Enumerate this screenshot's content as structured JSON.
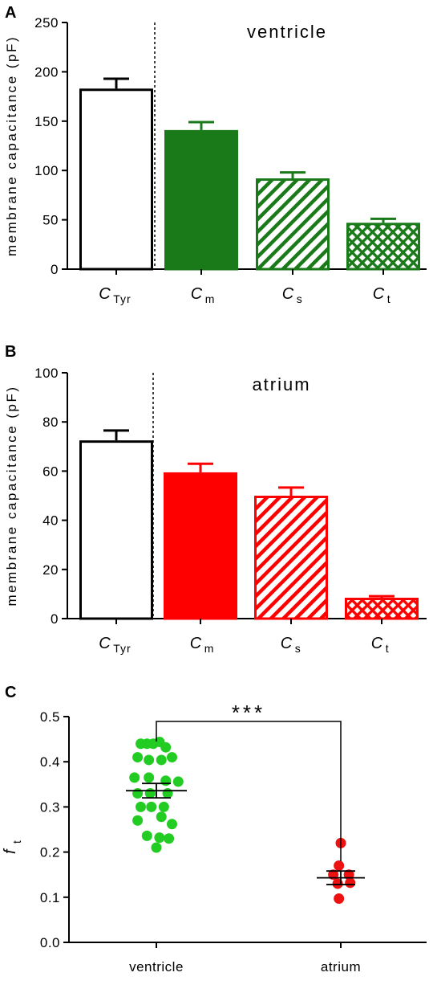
{
  "panels": {
    "A": {
      "letter": "A"
    },
    "B": {
      "letter": "B"
    },
    "C": {
      "letter": "C"
    }
  },
  "chart_data": [
    {
      "type": "bar",
      "inset_label": "ventricle",
      "ylabel": "membrane capacitance (pF)",
      "ylim": [
        0,
        250
      ],
      "yticks": [
        0,
        50,
        100,
        150,
        200,
        250
      ],
      "categories": [
        {
          "main": "C",
          "sub": "Tyr"
        },
        {
          "main": "C",
          "sub": "m"
        },
        {
          "main": "C",
          "sub": "s"
        },
        {
          "main": "C",
          "sub": "t"
        }
      ],
      "values": [
        183,
        141,
        92,
        47
      ],
      "errors": [
        10,
        8,
        6,
        4
      ],
      "fills": [
        "none",
        "solid",
        "diagonal",
        "crosshatch"
      ],
      "colors": [
        "#000000",
        "#1a7a1a",
        "#1a7a1a",
        "#1a7a1a"
      ],
      "separator": "dotted line after first bar"
    },
    {
      "type": "bar",
      "inset_label": "atrium",
      "ylabel": "membrane capacitance (pF)",
      "ylim": [
        0,
        100
      ],
      "yticks": [
        0,
        20,
        40,
        60,
        80,
        100
      ],
      "categories": [
        {
          "main": "C",
          "sub": "Tyr"
        },
        {
          "main": "C",
          "sub": "m"
        },
        {
          "main": "C",
          "sub": "s"
        },
        {
          "main": "C",
          "sub": "t"
        }
      ],
      "values": [
        72.5,
        59.5,
        50,
        8.5
      ],
      "errors": [
        4,
        3.5,
        3.3,
        0.6
      ],
      "fills": [
        "none",
        "solid",
        "diagonal",
        "crosshatch"
      ],
      "colors": [
        "#000000",
        "#ff0000",
        "#ff0000",
        "#ff0000"
      ],
      "separator": "dotted line after first bar"
    },
    {
      "type": "scatter",
      "ylabel_main": "f",
      "ylabel_sub": "t",
      "ylim": [
        0,
        0.5
      ],
      "yticks": [
        "0.0",
        "0.1",
        "0.2",
        "0.3",
        "0.4",
        "0.5"
      ],
      "categories": [
        "ventricle",
        "atrium"
      ],
      "series": [
        {
          "category": "ventricle",
          "color": "#22cc22",
          "mean": 0.336,
          "sem": 0.016,
          "points": [
            {
              "y": 0.44,
              "dx": -2.5
            },
            {
              "y": 0.44,
              "dx": -1.5
            },
            {
              "y": 0.44,
              "dx": -0.5
            },
            {
              "y": 0.444,
              "dx": 0.5
            },
            {
              "y": 0.432,
              "dx": 1.5
            },
            {
              "y": 0.41,
              "dx": -3
            },
            {
              "y": 0.404,
              "dx": -1.2
            },
            {
              "y": 0.404,
              "dx": 0.8
            },
            {
              "y": 0.41,
              "dx": 2.5
            },
            {
              "y": 0.365,
              "dx": -3.5
            },
            {
              "y": 0.365,
              "dx": -1.2
            },
            {
              "y": 0.358,
              "dx": 1.5
            },
            {
              "y": 0.356,
              "dx": 3.5
            },
            {
              "y": 0.33,
              "dx": -3
            },
            {
              "y": 0.33,
              "dx": -1
            },
            {
              "y": 0.33,
              "dx": 1.8
            },
            {
              "y": 0.3,
              "dx": -2.5
            },
            {
              "y": 0.3,
              "dx": -0.8
            },
            {
              "y": 0.3,
              "dx": 1.2
            },
            {
              "y": 0.27,
              "dx": -3
            },
            {
              "y": 0.278,
              "dx": 0.8
            },
            {
              "y": 0.262,
              "dx": 2.5
            },
            {
              "y": 0.236,
              "dx": -1.5
            },
            {
              "y": 0.232,
              "dx": 0.5
            },
            {
              "y": 0.23,
              "dx": 2
            },
            {
              "y": 0.21,
              "dx": 0
            }
          ]
        },
        {
          "category": "atrium",
          "color": "#ee1111",
          "mean": 0.143,
          "sem": 0.015,
          "points": [
            {
              "y": 0.22,
              "dx": 0
            },
            {
              "y": 0.17,
              "dx": -0.3
            },
            {
              "y": 0.15,
              "dx": -1.2
            },
            {
              "y": 0.15,
              "dx": 1.3
            },
            {
              "y": 0.13,
              "dx": -0.5
            },
            {
              "y": 0.132,
              "dx": 1.5
            },
            {
              "y": 0.097,
              "dx": -0.3
            }
          ]
        }
      ],
      "significance": "***"
    }
  ]
}
